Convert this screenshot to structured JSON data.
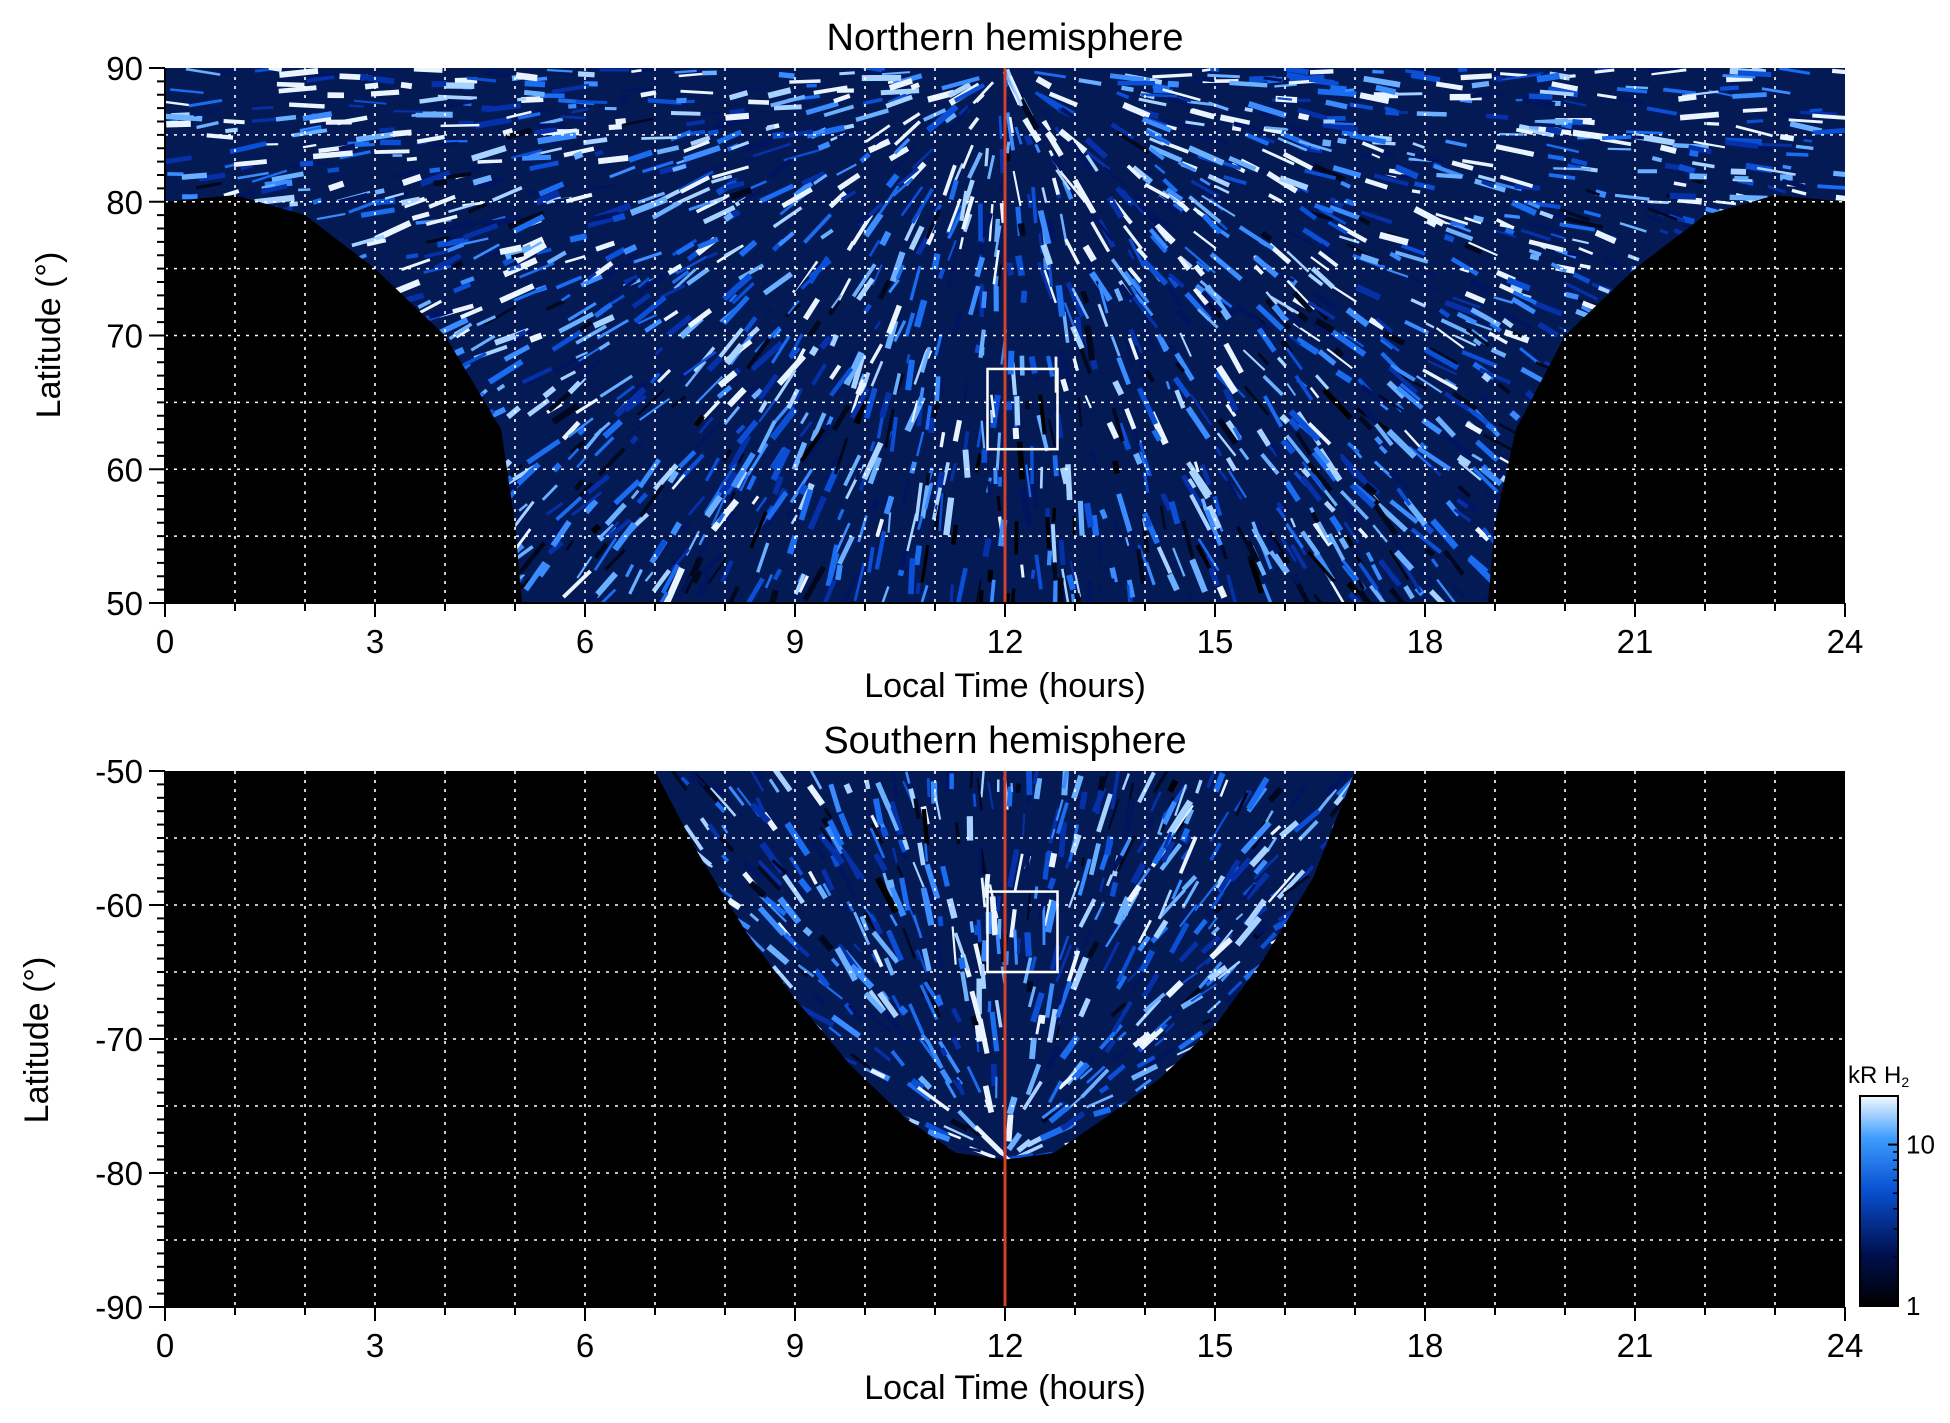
{
  "chart_data": [
    {
      "type": "heatmap",
      "title": "Northern hemisphere",
      "xlabel": "Local Time (hours)",
      "ylabel": "Latitude (°)",
      "xlim": [
        0,
        24
      ],
      "ylim": [
        50,
        90
      ],
      "xticks": [
        0,
        3,
        6,
        9,
        12,
        15,
        18,
        21,
        24
      ],
      "yticks": [
        50,
        60,
        70,
        80,
        90
      ],
      "grid": true,
      "grid_x_step_hours": 1,
      "grid_y_step_deg": 5,
      "noon_line": {
        "x": 12,
        "color": "#d0402a"
      },
      "highlight_box": {
        "x": [
          11.75,
          12.75
        ],
        "y": [
          61.5,
          67.5
        ],
        "color": "#ffffff"
      },
      "coverage_outline_latitude_vs_local_time": [
        [
          0,
          80
        ],
        [
          1,
          80.5
        ],
        [
          2,
          79
        ],
        [
          3,
          75
        ],
        [
          4,
          70
        ],
        [
          4.8,
          63
        ],
        [
          5,
          56
        ],
        [
          5.1,
          50
        ],
        [
          18.9,
          50
        ],
        [
          19,
          56
        ],
        [
          19.3,
          63
        ],
        [
          20,
          70
        ],
        [
          21,
          75
        ],
        [
          22,
          79
        ],
        [
          23,
          80.5
        ],
        [
          24,
          80
        ]
      ],
      "cap_band_latitudes": [
        85.5,
        90
      ],
      "colormap": "black-to-blue-to-white",
      "background_color": "#000000"
    },
    {
      "type": "heatmap",
      "title": "Southern hemisphere",
      "xlabel": "Local Time (hours)",
      "ylabel": "Latitude (°)",
      "xlim": [
        0,
        24
      ],
      "ylim": [
        -90,
        -50
      ],
      "xticks": [
        0,
        3,
        6,
        9,
        12,
        15,
        18,
        21,
        24
      ],
      "yticks": [
        -50,
        -60,
        -70,
        -80,
        -90
      ],
      "grid": true,
      "grid_x_step_hours": 1,
      "grid_y_step_deg": 5,
      "noon_line": {
        "x": 12,
        "color": "#d0402a"
      },
      "highlight_box": {
        "x": [
          11.75,
          12.75
        ],
        "y": [
          -65,
          -59
        ],
        "color": "#ffffff"
      },
      "coverage_outline_latitude_vs_local_time": [
        [
          7,
          -50
        ],
        [
          7.6,
          -56
        ],
        [
          8.3,
          -62
        ],
        [
          9,
          -67
        ],
        [
          9.8,
          -72
        ],
        [
          10.6,
          -76
        ],
        [
          11.3,
          -78.5
        ],
        [
          12,
          -79
        ],
        [
          12.7,
          -78.5
        ],
        [
          13.4,
          -76
        ],
        [
          14.2,
          -73
        ],
        [
          15,
          -69
        ],
        [
          15.7,
          -64
        ],
        [
          16.4,
          -58
        ],
        [
          17,
          -50
        ]
      ],
      "colormap": "black-to-blue-to-white",
      "background_color": "#000000"
    }
  ],
  "colorbar": {
    "label": "kR H",
    "label_subscript": "2",
    "scale": "log",
    "range": [
      1,
      20
    ],
    "ticks": [
      "1",
      "10"
    ]
  }
}
